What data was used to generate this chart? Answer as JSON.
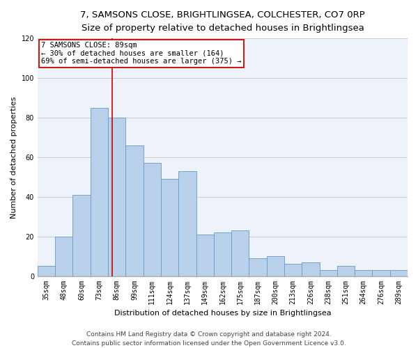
{
  "title_line1": "7, SAMSONS CLOSE, BRIGHTLINGSEA, COLCHESTER, CO7 0RP",
  "title_line2": "Size of property relative to detached houses in Brightlingsea",
  "xlabel": "Distribution of detached houses by size in Brightlingsea",
  "ylabel": "Number of detached properties",
  "categories": [
    "35sqm",
    "48sqm",
    "60sqm",
    "73sqm",
    "86sqm",
    "99sqm",
    "111sqm",
    "124sqm",
    "137sqm",
    "149sqm",
    "162sqm",
    "175sqm",
    "187sqm",
    "200sqm",
    "213sqm",
    "226sqm",
    "238sqm",
    "251sqm",
    "264sqm",
    "276sqm",
    "289sqm"
  ],
  "values": [
    5,
    20,
    41,
    85,
    80,
    66,
    57,
    49,
    53,
    21,
    22,
    23,
    9,
    10,
    6,
    7,
    3,
    5,
    3,
    3,
    3
  ],
  "bar_color": "#b8d0ea",
  "bar_edge_color": "#6699cc",
  "annotation_text": "7 SAMSONS CLOSE: 89sqm\n← 30% of detached houses are smaller (164)\n69% of semi-detached houses are larger (375) →",
  "annotation_box_color": "white",
  "annotation_box_edge_color": "#cc0000",
  "vline_color": "#cc0000",
  "vline_x": 3.73,
  "ylim": [
    0,
    120
  ],
  "yticks": [
    0,
    20,
    40,
    60,
    80,
    100,
    120
  ],
  "grid_color": "#cccccc",
  "bg_color": "#eef2fb",
  "footer_line1": "Contains HM Land Registry data © Crown copyright and database right 2024.",
  "footer_line2": "Contains public sector information licensed under the Open Government Licence v3.0.",
  "title_fontsize": 9.5,
  "subtitle_fontsize": 8.5,
  "xlabel_fontsize": 8,
  "ylabel_fontsize": 8,
  "tick_fontsize": 7,
  "annot_fontsize": 7.5,
  "footer_fontsize": 6.5
}
